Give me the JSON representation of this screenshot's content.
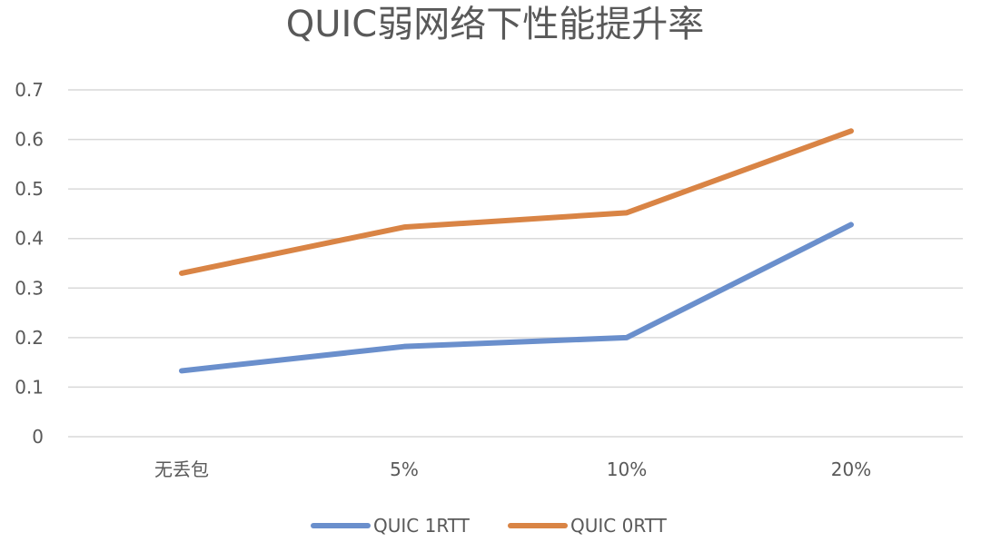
{
  "chart_data": {
    "type": "line",
    "title": "QUIC弱网络下性能提升率",
    "xlabel": "",
    "ylabel": "",
    "categories": [
      "无丢包",
      "5%",
      "10%",
      "20%"
    ],
    "y_ticks": [
      "0",
      "0.1",
      "0.2",
      "0.3",
      "0.4",
      "0.5",
      "0.6",
      "0.7"
    ],
    "ylim": [
      0,
      0.7
    ],
    "grid": true,
    "legend_position": "bottom",
    "series": [
      {
        "name": "QUIC 1RTT",
        "color": "#6a8fcc",
        "values": [
          0.133,
          0.182,
          0.2,
          0.428
        ]
      },
      {
        "name": "QUIC 0RTT",
        "color": "#d98445",
        "values": [
          0.33,
          0.423,
          0.452,
          0.617
        ]
      }
    ]
  }
}
